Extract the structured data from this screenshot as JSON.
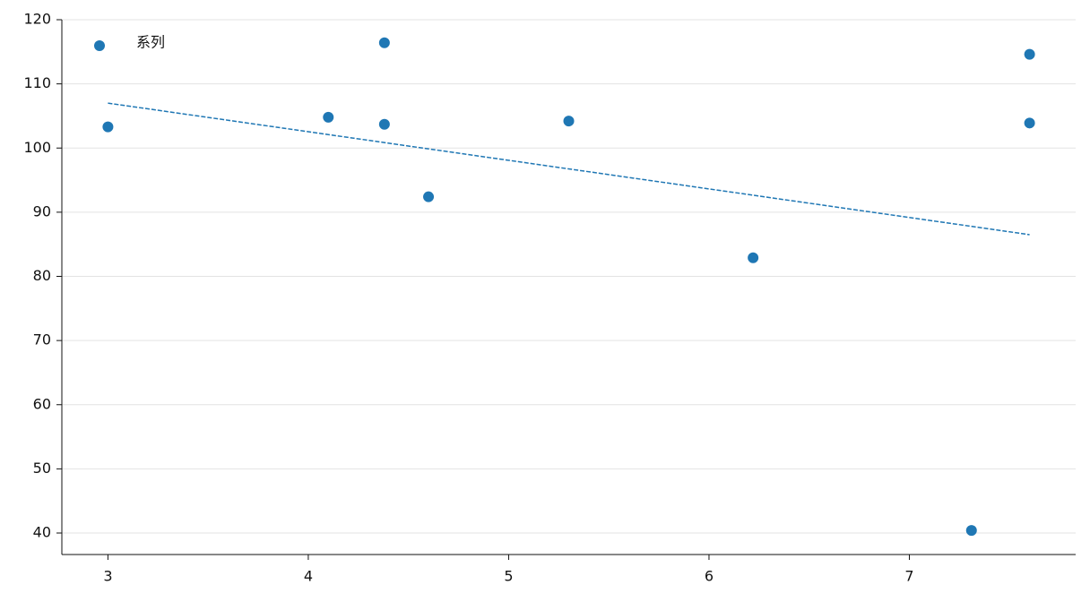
{
  "chart_data": {
    "type": "scatter",
    "series": [
      {
        "name": "系列",
        "color": "#1f77b4",
        "x": [
          3.0,
          4.1,
          4.38,
          4.38,
          4.6,
          5.3,
          6.22,
          7.31,
          7.6,
          7.6
        ],
        "values": [
          103.3,
          104.8,
          116.4,
          103.7,
          92.4,
          104.2,
          82.9,
          40.4,
          114.6,
          103.9
        ]
      }
    ],
    "trendline": {
      "x": [
        3.0,
        7.6
      ],
      "values": [
        107.0,
        86.5
      ],
      "color": "#1f77b4"
    },
    "xlim": [
      2.77,
      7.83
    ],
    "ylim": [
      36.65,
      120
    ],
    "xticks": [
      3,
      4,
      5,
      6,
      7
    ],
    "yticks": [
      40,
      50,
      60,
      70,
      80,
      90,
      100,
      110,
      120
    ],
    "grid": true,
    "legend": "upper left"
  }
}
